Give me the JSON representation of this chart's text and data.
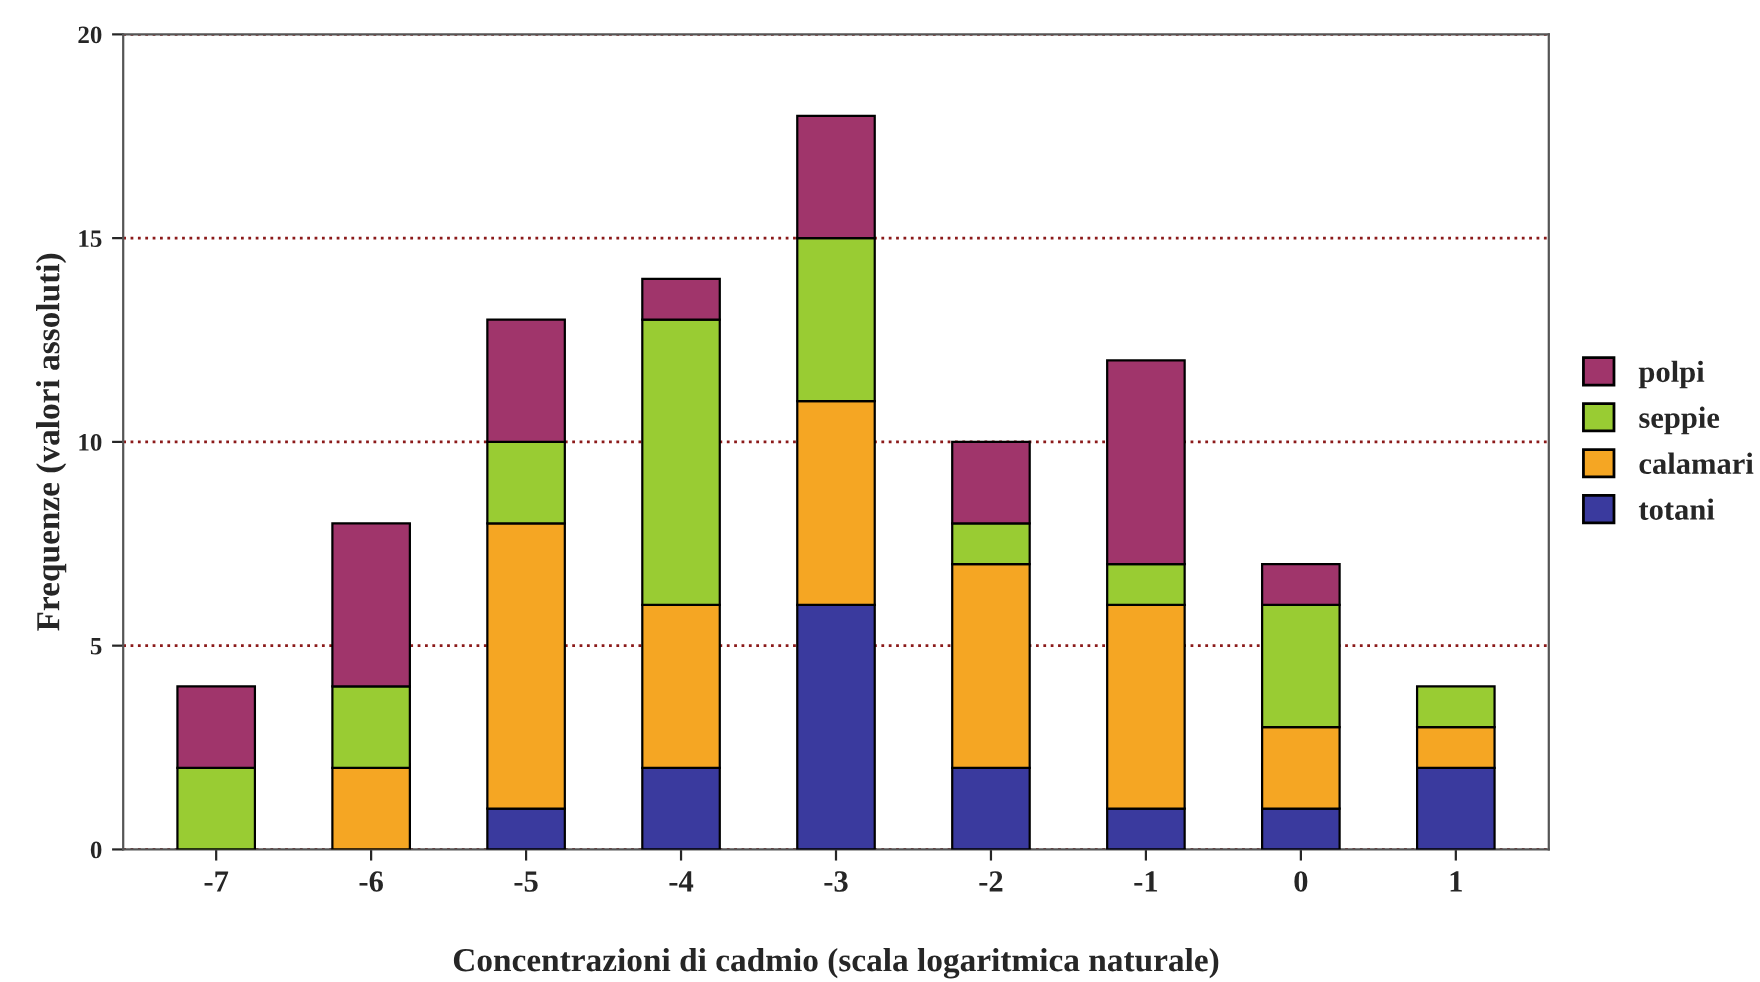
{
  "chart_data": {
    "type": "bar",
    "stacked": true,
    "xlabel": "Concentrazioni di cadmio (scala logaritmica naturale)",
    "ylabel": "Frequenze (valori assoluti)",
    "categories": [
      "-7",
      "-6",
      "-5",
      "-4",
      "-3",
      "-2",
      "-1",
      "0",
      "1"
    ],
    "series": [
      {
        "name": "totani",
        "color": "#3a3a9e",
        "values": [
          0,
          0,
          1,
          2,
          6,
          2,
          1,
          1,
          2
        ]
      },
      {
        "name": "calamari",
        "color": "#f5a623",
        "values": [
          0,
          2,
          7,
          4,
          5,
          5,
          5,
          2,
          1
        ]
      },
      {
        "name": "seppie",
        "color": "#99cc33",
        "values": [
          2,
          2,
          2,
          7,
          4,
          1,
          1,
          3,
          1
        ]
      },
      {
        "name": "polpi",
        "color": "#a0356b",
        "values": [
          2,
          4,
          3,
          1,
          3,
          2,
          5,
          1,
          0
        ]
      }
    ],
    "ylim": [
      0,
      20
    ],
    "yticks": [
      0,
      5,
      10,
      15,
      20
    ],
    "grid": "y",
    "legend": "right"
  }
}
